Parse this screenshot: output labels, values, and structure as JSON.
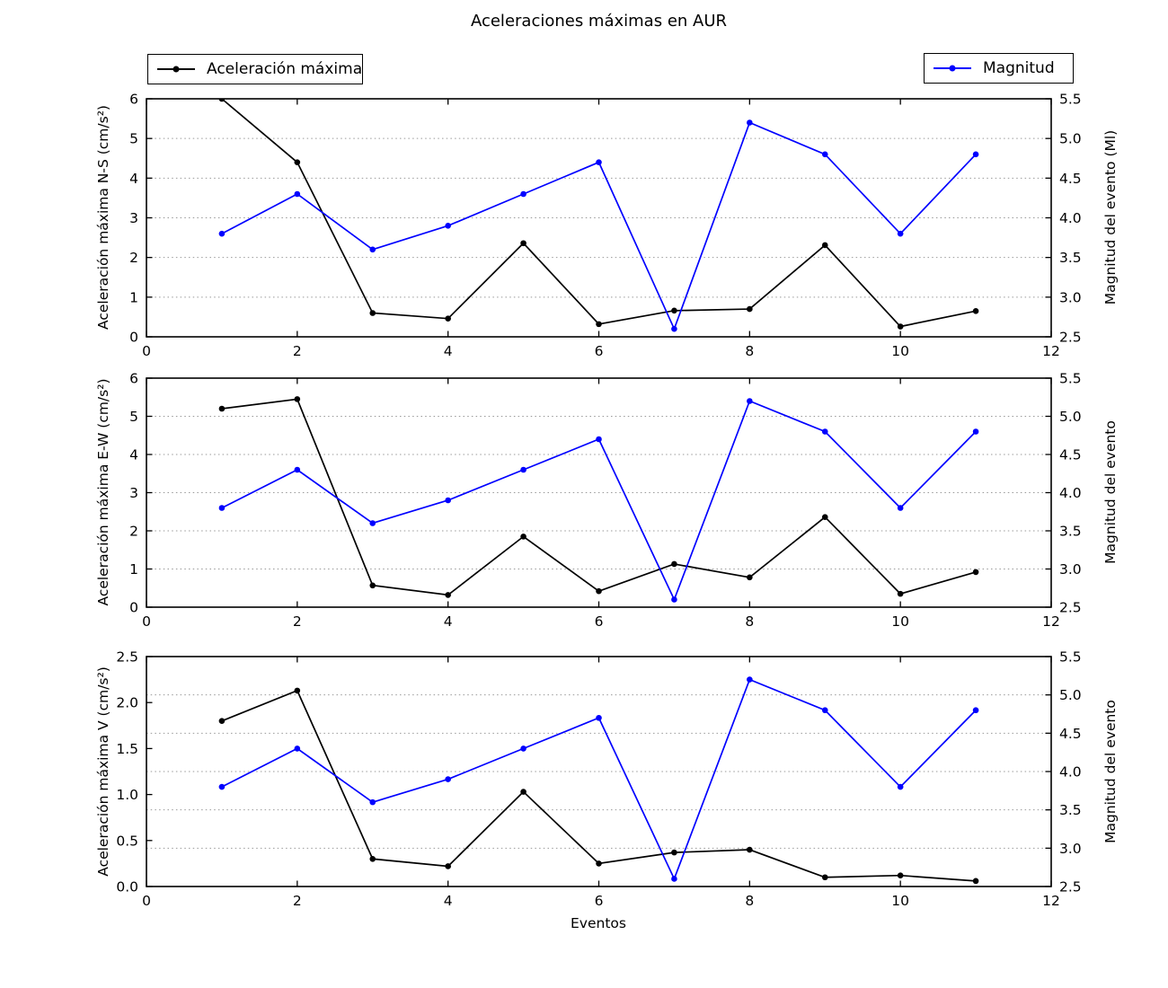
{
  "title": "Aceleraciones máximas en AUR",
  "xlabel": "Eventos",
  "colors": {
    "acceleration_series": "#000000",
    "magnitude_series": "#0000ff",
    "grid": "#999999",
    "axis": "#000000",
    "background": "#ffffff"
  },
  "legends": [
    {
      "label": "Aceleración máxima",
      "color": "#000000"
    },
    {
      "label": "Magnitud",
      "color": "#0000ff"
    }
  ],
  "chart_data": [
    {
      "type": "line",
      "subplot": "N-S",
      "x": [
        1,
        2,
        3,
        4,
        5,
        6,
        7,
        8,
        9,
        10,
        11
      ],
      "xlim": [
        0,
        12
      ],
      "x_ticks": [
        0,
        2,
        4,
        6,
        8,
        10,
        12
      ],
      "x_tick_labels": [
        "0",
        "2",
        "4",
        "6",
        "8",
        "10",
        "12"
      ],
      "left_axis": {
        "label": "Aceleración máxima N-S (cm/s²)",
        "lim": [
          0,
          6
        ],
        "tick_values": [
          0,
          1,
          2,
          3,
          4,
          5,
          6
        ],
        "tick_labels": [
          "0",
          "1",
          "2",
          "3",
          "4",
          "5",
          "6"
        ]
      },
      "right_axis": {
        "label": "Magnitud del evento (Ml)",
        "lim": [
          2.5,
          5.5
        ],
        "tick_values": [
          2.5,
          3.0,
          3.5,
          4.0,
          4.5,
          5.0,
          5.5
        ],
        "tick_labels": [
          "2.5",
          "3.0",
          "3.5",
          "4.0",
          "4.5",
          "5.0",
          "5.5"
        ]
      },
      "grid_right_values": [
        3.0,
        3.5,
        4.0,
        4.5,
        5.0
      ],
      "series": [
        {
          "name": "Aceleración máxima",
          "axis": "left",
          "color": "#000000",
          "values": [
            6.0,
            4.4,
            0.6,
            0.46,
            2.36,
            0.32,
            0.66,
            0.7,
            2.31,
            0.26,
            0.65
          ]
        },
        {
          "name": "Magnitud",
          "axis": "right",
          "color": "#0000ff",
          "values": [
            3.8,
            4.3,
            3.6,
            3.9,
            4.3,
            4.7,
            2.6,
            5.2,
            4.8,
            3.8,
            4.8
          ]
        }
      ]
    },
    {
      "type": "line",
      "subplot": "E-W",
      "x": [
        1,
        2,
        3,
        4,
        5,
        6,
        7,
        8,
        9,
        10,
        11
      ],
      "xlim": [
        0,
        12
      ],
      "x_ticks": [
        0,
        2,
        4,
        6,
        8,
        10,
        12
      ],
      "x_tick_labels": [
        "0",
        "2",
        "4",
        "6",
        "8",
        "10",
        "12"
      ],
      "left_axis": {
        "label": "Aceleración máxima E-W (cm/s²)",
        "lim": [
          0,
          6
        ],
        "tick_values": [
          0,
          1,
          2,
          3,
          4,
          5,
          6
        ],
        "tick_labels": [
          "0",
          "1",
          "2",
          "3",
          "4",
          "5",
          "6"
        ]
      },
      "right_axis": {
        "label": "Magnitud del evento",
        "lim": [
          2.5,
          5.5
        ],
        "tick_values": [
          2.5,
          3.0,
          3.5,
          4.0,
          4.5,
          5.0,
          5.5
        ],
        "tick_labels": [
          "2.5",
          "3.0",
          "3.5",
          "4.0",
          "4.5",
          "5.0",
          "5.5"
        ]
      },
      "grid_right_values": [
        3.0,
        3.5,
        4.0,
        4.5,
        5.0
      ],
      "series": [
        {
          "name": "Aceleración máxima",
          "axis": "left",
          "color": "#000000",
          "values": [
            5.2,
            5.45,
            0.57,
            0.32,
            1.85,
            0.42,
            1.13,
            0.78,
            2.36,
            0.35,
            0.92
          ]
        },
        {
          "name": "Magnitud",
          "axis": "right",
          "color": "#0000ff",
          "values": [
            3.8,
            4.3,
            3.6,
            3.9,
            4.3,
            4.7,
            2.6,
            5.2,
            4.8,
            3.8,
            4.8
          ]
        }
      ]
    },
    {
      "type": "line",
      "subplot": "V",
      "x": [
        1,
        2,
        3,
        4,
        5,
        6,
        7,
        8,
        9,
        10,
        11
      ],
      "xlim": [
        0,
        12
      ],
      "x_ticks": [
        0,
        2,
        4,
        6,
        8,
        10,
        12
      ],
      "x_tick_labels": [
        "0",
        "2",
        "4",
        "6",
        "8",
        "10",
        "12"
      ],
      "left_axis": {
        "label": "Aceleración máxima V (cm/s²)",
        "lim": [
          0,
          2.5
        ],
        "tick_values": [
          0,
          0.5,
          1.0,
          1.5,
          2.0,
          2.5
        ],
        "tick_labels": [
          "0.0",
          "0.5",
          "1.0",
          "1.5",
          "2.0",
          "2.5"
        ]
      },
      "right_axis": {
        "label": "Magnitud del evento",
        "lim": [
          2.5,
          5.5
        ],
        "tick_values": [
          2.5,
          3.0,
          3.5,
          4.0,
          4.5,
          5.0,
          5.5
        ],
        "tick_labels": [
          "2.5",
          "3.0",
          "3.5",
          "4.0",
          "4.5",
          "5.0",
          "5.5"
        ]
      },
      "grid_right_values": [
        3.0,
        3.5,
        4.0,
        4.5,
        5.0
      ],
      "series": [
        {
          "name": "Aceleración máxima",
          "axis": "left",
          "color": "#000000",
          "values": [
            1.8,
            2.13,
            0.3,
            0.22,
            1.03,
            0.25,
            0.37,
            0.4,
            0.1,
            0.12,
            0.06
          ]
        },
        {
          "name": "Magnitud",
          "axis": "right",
          "color": "#0000ff",
          "values": [
            3.8,
            4.3,
            3.6,
            3.9,
            4.3,
            4.7,
            2.6,
            5.2,
            4.8,
            3.8,
            4.8
          ]
        }
      ]
    }
  ]
}
